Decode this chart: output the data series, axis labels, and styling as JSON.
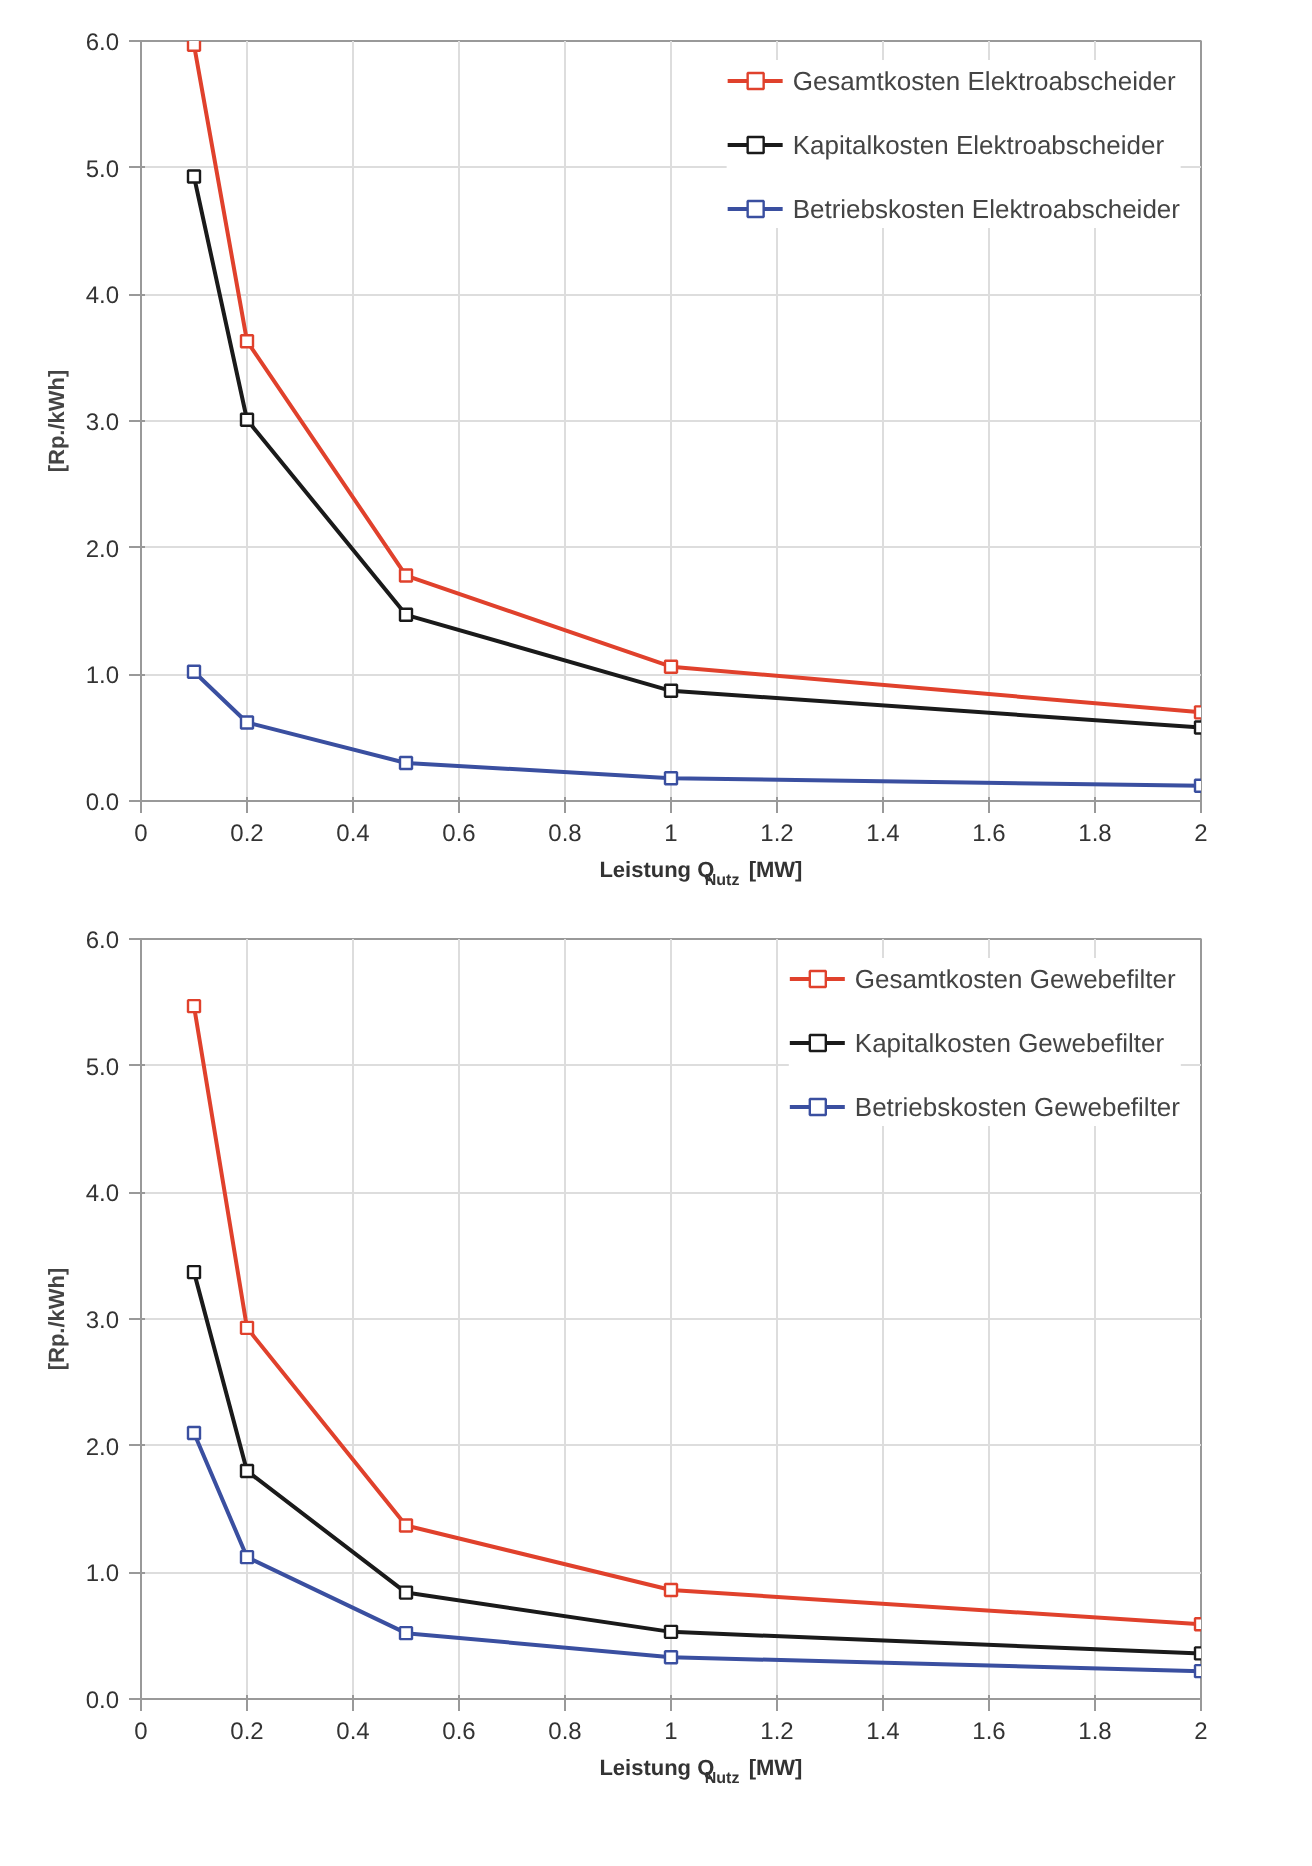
{
  "chart_data": [
    {
      "type": "line",
      "xlabel": "Leistung Q$_{Nutz}$  [MW]",
      "ylabel": "[Rp./kWh]",
      "x": [
        0.1,
        0.2,
        0.5,
        1,
        2
      ],
      "xlim": [
        0,
        2
      ],
      "xticks": [
        0,
        0.2,
        0.4,
        0.6,
        0.8,
        1,
        1.2,
        1.4,
        1.6,
        1.8,
        2
      ],
      "ylim": [
        0,
        6
      ],
      "yticks": [
        {
          "value": 0,
          "label": "0.0"
        },
        {
          "value": 1,
          "label": "1.0"
        },
        {
          "value": 2,
          "label": "2.0"
        },
        {
          "value": 3,
          "label": "3.0"
        },
        {
          "value": 4,
          "label": "4.0"
        },
        {
          "value": 5,
          "label": "5.0"
        },
        {
          "value": 6,
          "label": "6.0"
        }
      ],
      "grid": true,
      "legend": "top right",
      "marker": "square",
      "line_style": "solid",
      "series": [
        {
          "name": "Gesamtkosten Elektroabscheider",
          "color": "#e0412c",
          "values": [
            5.97,
            3.63,
            1.78,
            1.06,
            0.7
          ]
        },
        {
          "name": "Kapitalkosten Elektroabscheider",
          "color": "#1a1a1a",
          "values": [
            4.93,
            3.01,
            1.47,
            0.87,
            0.58
          ]
        },
        {
          "name": "Betriebskosten Elektroabscheider",
          "color": "#3a4fa0",
          "values": [
            1.02,
            0.62,
            0.3,
            0.18,
            0.12
          ]
        }
      ]
    },
    {
      "type": "line",
      "xlabel": "Leistung Q$_{Nutz}$  [MW]",
      "ylabel": "[Rp./kWh]",
      "x": [
        0.1,
        0.2,
        0.5,
        1,
        2
      ],
      "xlim": [
        0,
        2
      ],
      "xticks": [
        0,
        0.2,
        0.4,
        0.6,
        0.8,
        1,
        1.2,
        1.4,
        1.6,
        1.8,
        2
      ],
      "ylim": [
        0,
        6
      ],
      "yticks": [
        {
          "value": 0,
          "label": "0.0"
        },
        {
          "value": 1,
          "label": "1.0"
        },
        {
          "value": 2,
          "label": "2.0"
        },
        {
          "value": 3,
          "label": "3.0"
        },
        {
          "value": 4,
          "label": "4.0"
        },
        {
          "value": 5,
          "label": "5.0"
        },
        {
          "value": 6,
          "label": "6.0"
        }
      ],
      "grid": true,
      "legend": "top right",
      "marker": "square",
      "line_style": "solid",
      "series": [
        {
          "name": "Gesamtkosten Gewebefilter",
          "color": "#e0412c",
          "values": [
            5.47,
            2.93,
            1.37,
            0.86,
            0.59
          ]
        },
        {
          "name": "Kapitalkosten Gewebefilter",
          "color": "#1a1a1a",
          "values": [
            3.37,
            1.8,
            0.84,
            0.53,
            0.36
          ]
        },
        {
          "name": "Betriebskosten Gewebefilter",
          "color": "#3a4fa0",
          "values": [
            2.1,
            1.12,
            0.52,
            0.33,
            0.22
          ]
        }
      ]
    }
  ]
}
